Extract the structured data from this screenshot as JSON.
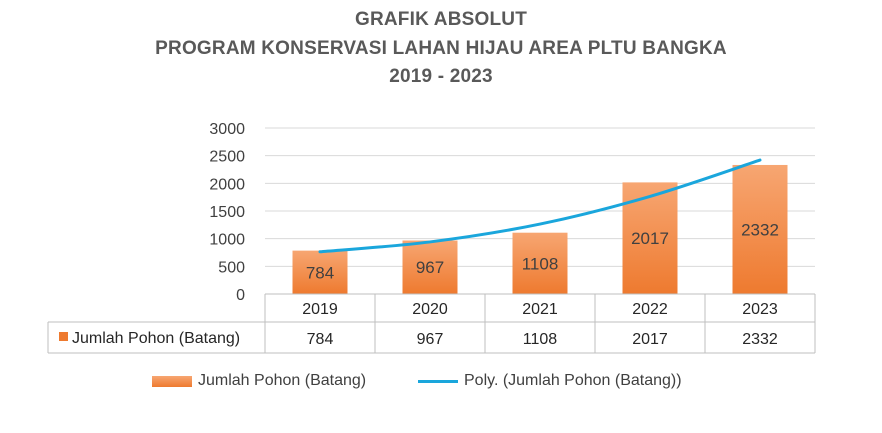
{
  "titles": {
    "line1": "GRAFIK ABSOLUT",
    "line2": "PROGRAM KONSERVASI LAHAN HIJAU AREA PLTU BANGKA",
    "line3": "2019 - 2023"
  },
  "colors": {
    "bar_top": "#f7a672",
    "bar_bottom": "#ee7a2f",
    "trend": "#1aa6dc",
    "grid": "#d9d9d9"
  },
  "chart_data": {
    "type": "bar",
    "title": "GRAFIK ABSOLUT PROGRAM KONSERVASI LAHAN HIJAU AREA PLTU BANGKA 2019 - 2023",
    "categories": [
      "2019",
      "2020",
      "2021",
      "2022",
      "2023"
    ],
    "series": [
      {
        "name": "Jumlah Pohon (Batang)",
        "values": [
          784,
          967,
          1108,
          2017,
          2332
        ]
      }
    ],
    "trendline": {
      "name": "Poly. (Jumlah Pohon (Batang))",
      "type": "polynomial",
      "values": [
        763,
        941,
        1264,
        1764,
        2420
      ]
    },
    "yticks": [
      "0",
      "500",
      "1000",
      "1500",
      "2000",
      "2500",
      "3000"
    ],
    "ylim": [
      0,
      3000
    ],
    "grid": true,
    "data_table": true,
    "legend": "bottom"
  },
  "table_row_label": "Jumlah Pohon (Batang)",
  "legend": {
    "series_label": "Jumlah Pohon (Batang)",
    "trend_label": "Poly. (Jumlah Pohon (Batang))"
  }
}
